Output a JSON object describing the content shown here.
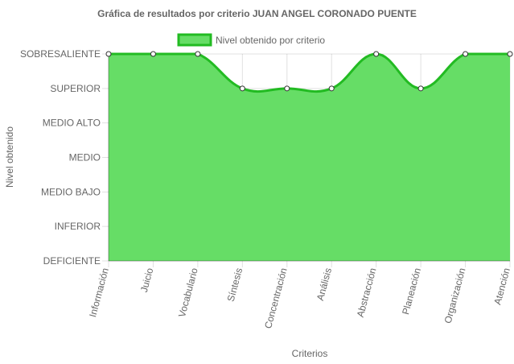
{
  "chart_data": {
    "type": "area",
    "title": "Gráfica de resultados por criterio JUAN ANGEL CORONADO PUENTE",
    "xlabel": "Criterios",
    "ylabel": "Nivel obtenido",
    "categories": [
      "Información",
      "Juicio",
      "Vocabulario",
      "Síntesis",
      "Concentración",
      "Análisis",
      "Abstracción",
      "Planeación",
      "Organización",
      "Atención"
    ],
    "y_levels": [
      "DEFICIENTE",
      "INFERIOR",
      "MEDIO BAJO",
      "MEDIO",
      "MEDIO ALTO",
      "SUPERIOR",
      "SOBRESALIENTE"
    ],
    "ylim": [
      0,
      6
    ],
    "grid": true,
    "legend_position": "top",
    "series": [
      {
        "name": "Nivel obtenido por criterio",
        "values": [
          6,
          6,
          6,
          5,
          5,
          5,
          6,
          5,
          6,
          6
        ],
        "fill_color": "#66dd66",
        "line_color": "#22bb22"
      }
    ]
  }
}
